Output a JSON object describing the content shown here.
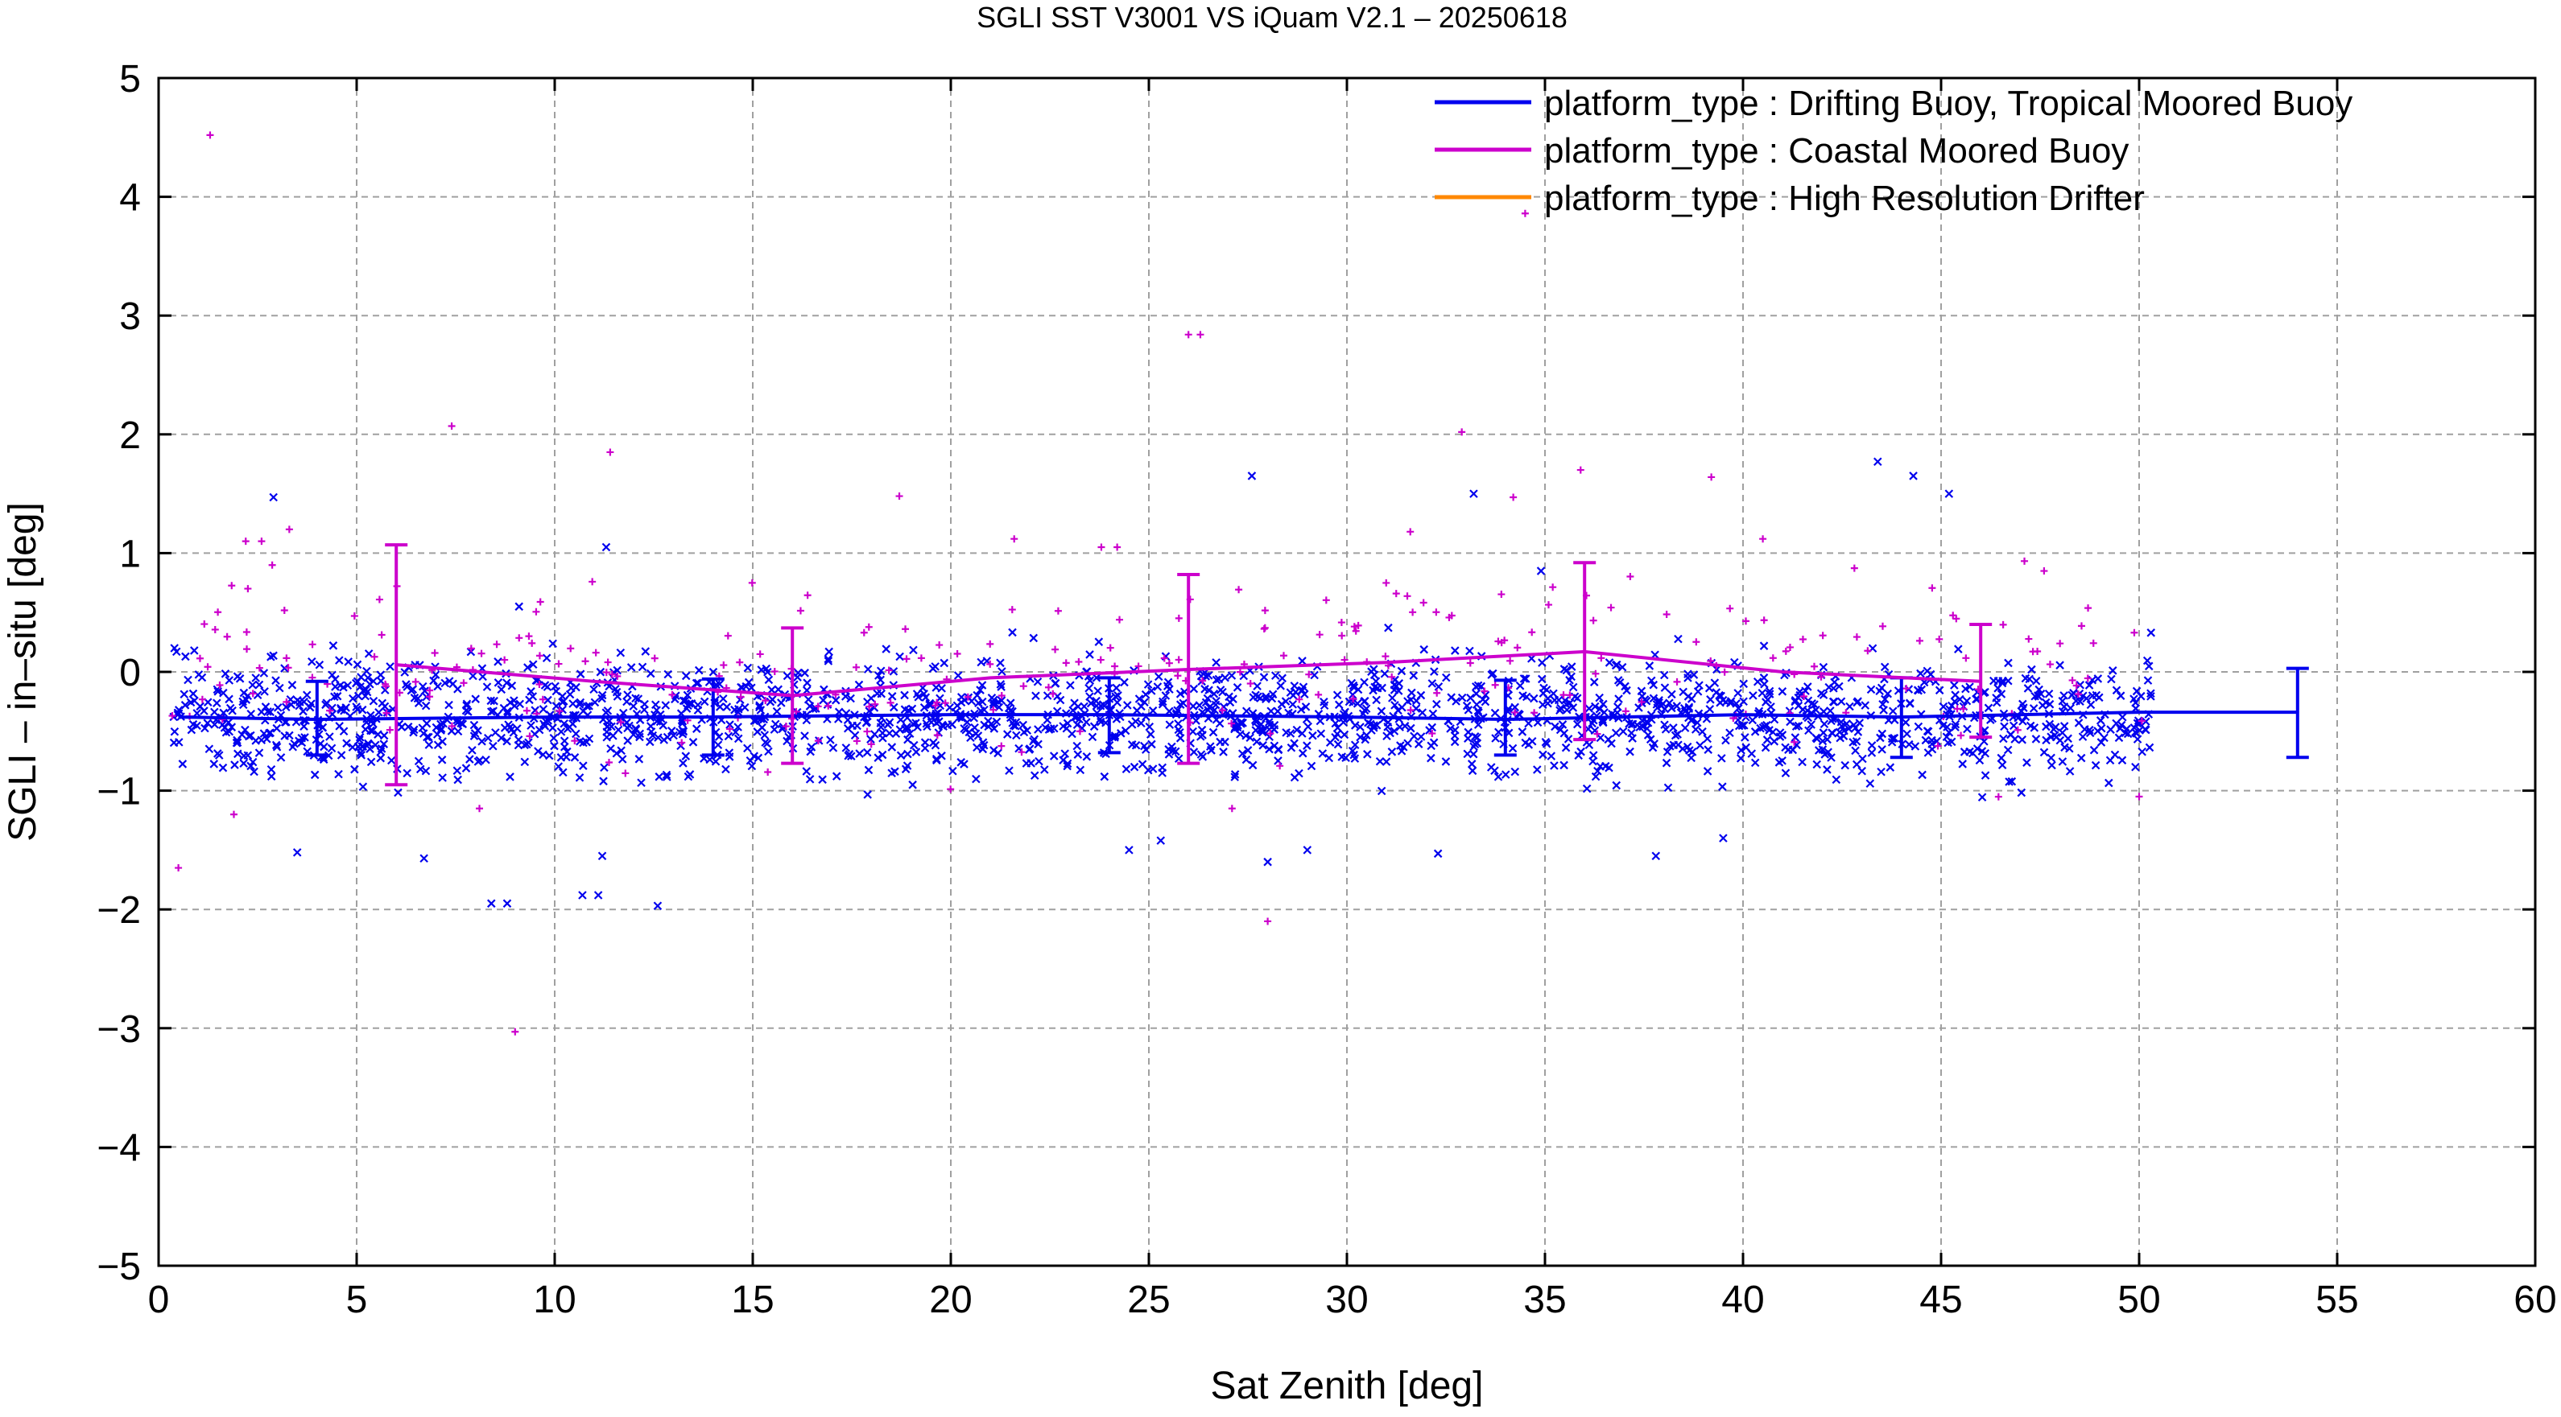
{
  "chart_data": {
    "type": "scatter",
    "title": "SGLI SST V3001 VS iQuam V2.1  – 20250618",
    "xlabel": "Sat Zenith [deg]",
    "ylabel": "SGLI – in–situ [deg]",
    "xlim": [
      0,
      60
    ],
    "ylim": [
      -5,
      5
    ],
    "x_ticks": [
      0,
      5,
      10,
      15,
      20,
      25,
      30,
      35,
      40,
      45,
      50,
      55,
      60
    ],
    "y_ticks": [
      -5,
      -4,
      -3,
      -2,
      -1,
      0,
      1,
      2,
      3,
      4,
      5
    ],
    "x_tick_labels": [
      "0",
      "5",
      "10",
      "15",
      "20",
      "25",
      "30",
      "35",
      "40",
      "45",
      "50",
      "55",
      "60"
    ],
    "y_tick_labels": [
      "−5",
      "−4",
      "−3",
      "−2",
      "−1",
      "0",
      "1",
      "2",
      "3",
      "4",
      "5"
    ],
    "grid": true,
    "legend_position": "top-right",
    "series": [
      {
        "name": "platform_type : Drifting Buoy, Tropical Moored Buoy",
        "color": "#0000ee",
        "marker": "x",
        "mean_line": {
          "x": [
            0.5,
            4,
            10,
            14,
            20,
            24,
            30,
            34,
            40,
            44,
            50,
            54
          ],
          "y": [
            -0.38,
            -0.4,
            -0.38,
            -0.38,
            -0.36,
            -0.36,
            -0.38,
            -0.4,
            -0.36,
            -0.38,
            -0.34,
            -0.34
          ]
        },
        "error_bars": [
          {
            "x": 4,
            "low": -0.7,
            "high": -0.08
          },
          {
            "x": 14,
            "low": -0.7,
            "high": -0.06
          },
          {
            "x": 24,
            "low": -0.68,
            "high": -0.05
          },
          {
            "x": 34,
            "low": -0.7,
            "high": -0.07
          },
          {
            "x": 44,
            "low": -0.72,
            "high": -0.05
          },
          {
            "x": 54,
            "low": -0.72,
            "high": 0.03
          }
        ],
        "outliers": [
          {
            "x": 2.9,
            "y": 1.47
          },
          {
            "x": 11.3,
            "y": 1.05
          },
          {
            "x": 27.6,
            "y": 1.65
          },
          {
            "x": 33.2,
            "y": 1.5
          },
          {
            "x": 43.4,
            "y": 1.77
          },
          {
            "x": 44.3,
            "y": 1.65
          },
          {
            "x": 45.2,
            "y": 1.5
          },
          {
            "x": 34.9,
            "y": 0.85
          },
          {
            "x": 9.1,
            "y": 0.55
          },
          {
            "x": 8.4,
            "y": -1.95
          },
          {
            "x": 8.8,
            "y": -1.95
          },
          {
            "x": 10.7,
            "y": -1.88
          },
          {
            "x": 11.1,
            "y": -1.88
          },
          {
            "x": 12.6,
            "y": -1.97
          },
          {
            "x": 3.5,
            "y": -1.52
          },
          {
            "x": 6.7,
            "y": -1.57
          },
          {
            "x": 11.2,
            "y": -1.55
          },
          {
            "x": 28.0,
            "y": -1.6
          },
          {
            "x": 32.3,
            "y": -1.53
          },
          {
            "x": 37.8,
            "y": -1.55
          },
          {
            "x": 39.5,
            "y": -1.4
          },
          {
            "x": 25.3,
            "y": -1.42
          },
          {
            "x": 24.5,
            "y": -1.5
          },
          {
            "x": 29.0,
            "y": -1.5
          },
          {
            "x": 50.3,
            "y": 0.33
          },
          {
            "x": 0.4,
            "y": 0.2
          },
          {
            "x": 0.9,
            "y": 0.18
          }
        ]
      },
      {
        "name": "platform_type : Coastal Moored Buoy",
        "color": "#cc00cc",
        "marker": "+",
        "mean_line": {
          "x": [
            6,
            11,
            16,
            21,
            26,
            31,
            36,
            41,
            46
          ],
          "y": [
            0.06,
            -0.08,
            -0.2,
            -0.05,
            0.02,
            0.08,
            0.17,
            0.0,
            -0.08
          ]
        },
        "error_bars": [
          {
            "x": 6,
            "low": -0.95,
            "high": 1.07
          },
          {
            "x": 16,
            "low": -0.77,
            "high": 0.37
          },
          {
            "x": 26,
            "low": -0.77,
            "high": 0.82
          },
          {
            "x": 36,
            "low": -0.57,
            "high": 0.92
          },
          {
            "x": 46,
            "low": -0.55,
            "high": 0.4
          }
        ],
        "outliers": [
          {
            "x": 1.3,
            "y": 4.52
          },
          {
            "x": 34.5,
            "y": 3.86
          },
          {
            "x": 26.0,
            "y": 2.84
          },
          {
            "x": 26.3,
            "y": 2.84
          },
          {
            "x": 7.4,
            "y": 2.07
          },
          {
            "x": 11.4,
            "y": 1.85
          },
          {
            "x": 32.9,
            "y": 2.02
          },
          {
            "x": 35.9,
            "y": 1.7
          },
          {
            "x": 39.2,
            "y": 1.64
          },
          {
            "x": 18.7,
            "y": 1.48
          },
          {
            "x": 34.2,
            "y": 1.47
          },
          {
            "x": 31.6,
            "y": 1.18
          },
          {
            "x": 3.3,
            "y": 1.2
          },
          {
            "x": 2.2,
            "y": 1.1
          },
          {
            "x": 2.6,
            "y": 1.1
          },
          {
            "x": 21.6,
            "y": 1.12
          },
          {
            "x": 23.8,
            "y": 1.05
          },
          {
            "x": 24.2,
            "y": 1.05
          },
          {
            "x": 40.5,
            "y": 1.12
          },
          {
            "x": 47.6,
            "y": 0.85
          },
          {
            "x": 9.0,
            "y": -3.03
          },
          {
            "x": 28.0,
            "y": -2.1
          },
          {
            "x": 0.5,
            "y": -1.65
          },
          {
            "x": 1.9,
            "y": -1.2
          },
          {
            "x": 8.1,
            "y": -1.15
          },
          {
            "x": 27.1,
            "y": -1.15
          },
          {
            "x": 50.0,
            "y": -1.05
          }
        ]
      },
      {
        "name": "platform_type : High Resolution Drifter",
        "color": "#ff8800",
        "marker": "x"
      }
    ]
  }
}
